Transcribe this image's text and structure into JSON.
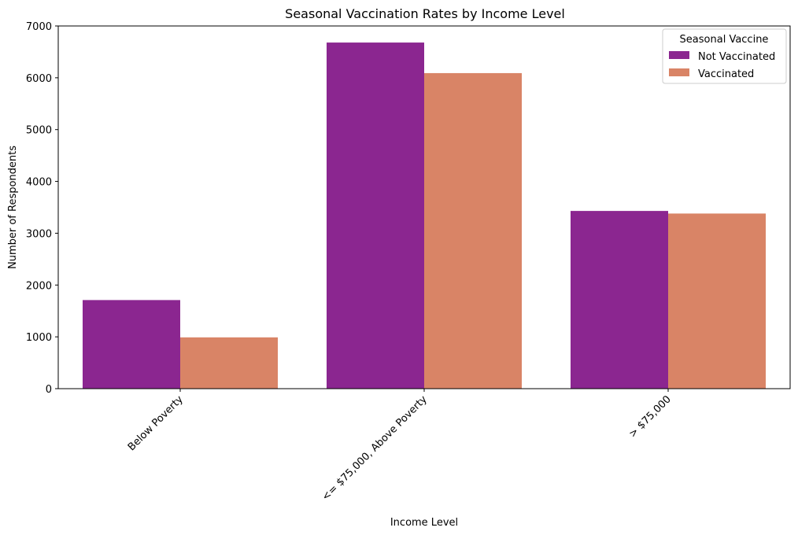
{
  "chart_data": {
    "type": "bar",
    "title": "Seasonal Vaccination Rates by Income Level",
    "xlabel": "Income Level",
    "ylabel": "Number of Respondents",
    "categories": [
      "Below Poverty",
      "<= $75,000, Above Poverty",
      "> $75,000"
    ],
    "series": [
      {
        "name": "Not Vaccinated",
        "values": [
          1710,
          6680,
          3430
        ],
        "color": "#8b2690"
      },
      {
        "name": "Vaccinated",
        "values": [
          990,
          6090,
          3380
        ],
        "color": "#d98466"
      }
    ],
    "ylim": [
      0,
      7000
    ],
    "yticks": [
      "0",
      "1000",
      "2000",
      "3000",
      "4000",
      "5000",
      "6000",
      "7000"
    ],
    "legend": {
      "title": "Seasonal Vaccine",
      "position": "top-right"
    },
    "grid": false
  }
}
